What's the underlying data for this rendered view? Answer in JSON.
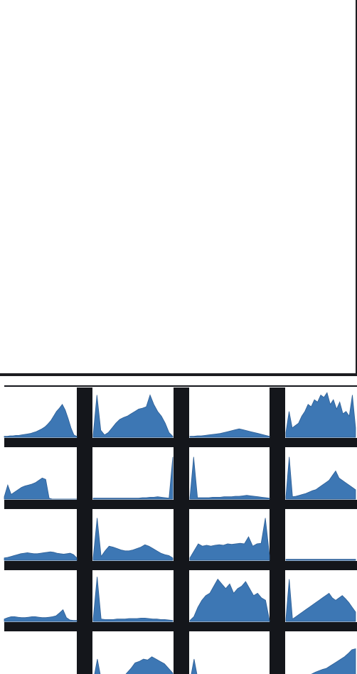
{
  "colors": {
    "fill": "#3d77b4",
    "stroke": "#2e5f96",
    "frame": "#14161b",
    "cell_bg": "#ffffff"
  },
  "chart_data": {
    "type": "area",
    "title": "",
    "xlabel": "",
    "ylabel": "",
    "grid": false,
    "legend": "none",
    "rows": 5,
    "cols": 4,
    "panels": [
      {
        "row": 0,
        "col": 0,
        "values": [
          0.02,
          0.02,
          0.03,
          0.03,
          0.04,
          0.04,
          0.05,
          0.06,
          0.07,
          0.08,
          0.1,
          0.12,
          0.15,
          0.18,
          0.22,
          0.28,
          0.35,
          0.45,
          0.55,
          0.62,
          0.7,
          0.58,
          0.4,
          0.2,
          0.05,
          0.02
        ]
      },
      {
        "row": 0,
        "col": 1,
        "values": [
          0.05,
          0.9,
          0.15,
          0.05,
          0.1,
          0.2,
          0.3,
          0.38,
          0.42,
          0.45,
          0.5,
          0.55,
          0.6,
          0.62,
          0.65,
          0.9,
          0.7,
          0.55,
          0.45,
          0.3,
          0.1,
          0.02
        ]
      },
      {
        "row": 0,
        "col": 2,
        "values": [
          0.02,
          0.02,
          0.03,
          0.03,
          0.04,
          0.05,
          0.06,
          0.07,
          0.08,
          0.1,
          0.12,
          0.14,
          0.16,
          0.18,
          0.16,
          0.14,
          0.12,
          0.1,
          0.08,
          0.06,
          0.04,
          0.02
        ]
      },
      {
        "row": 0,
        "col": 3,
        "values": [
          0.1,
          0.55,
          0.2,
          0.25,
          0.3,
          0.45,
          0.55,
          0.7,
          0.65,
          0.8,
          0.75,
          0.9,
          0.85,
          0.95,
          0.7,
          0.8,
          0.6,
          0.75,
          0.5,
          0.55,
          0.45,
          0.9,
          0.2
        ]
      },
      {
        "row": 1,
        "col": 0,
        "values": [
          0.05,
          0.3,
          0.1,
          0.15,
          0.2,
          0.25,
          0.28,
          0.3,
          0.32,
          0.35,
          0.4,
          0.45,
          0.42,
          0.02,
          0.0,
          0.0,
          0.0,
          0.0,
          0.0,
          0.0,
          0.0,
          0.0
        ]
      },
      {
        "row": 1,
        "col": 1,
        "values": [
          0.02,
          0.02,
          0.02,
          0.02,
          0.02,
          0.02,
          0.02,
          0.02,
          0.02,
          0.02,
          0.02,
          0.02,
          0.02,
          0.03,
          0.03,
          0.04,
          0.04,
          0.05,
          0.04,
          0.03,
          0.02,
          0.9
        ]
      },
      {
        "row": 1,
        "col": 2,
        "values": [
          0.02,
          0.9,
          0.03,
          0.03,
          0.03,
          0.03,
          0.04,
          0.04,
          0.04,
          0.05,
          0.05,
          0.05,
          0.06,
          0.06,
          0.07,
          0.08,
          0.07,
          0.06,
          0.05,
          0.04,
          0.03,
          0.02
        ]
      },
      {
        "row": 1,
        "col": 3,
        "values": [
          0.05,
          0.9,
          0.05,
          0.06,
          0.08,
          0.1,
          0.12,
          0.15,
          0.18,
          0.2,
          0.25,
          0.3,
          0.35,
          0.4,
          0.5,
          0.6,
          0.45,
          0.4,
          0.35,
          0.3,
          0.25,
          0.2
        ]
      },
      {
        "row": 2,
        "col": 0,
        "values": [
          0.05,
          0.06,
          0.08,
          0.1,
          0.12,
          0.14,
          0.15,
          0.16,
          0.15,
          0.14,
          0.14,
          0.15,
          0.16,
          0.17,
          0.18,
          0.17,
          0.15,
          0.14,
          0.13,
          0.14,
          0.15,
          0.12,
          0.05
        ]
      },
      {
        "row": 2,
        "col": 1,
        "values": [
          0.05,
          0.9,
          0.08,
          0.2,
          0.3,
          0.28,
          0.25,
          0.22,
          0.2,
          0.2,
          0.22,
          0.25,
          0.28,
          0.33,
          0.3,
          0.25,
          0.2,
          0.15,
          0.12,
          0.1,
          0.05
        ]
      },
      {
        "row": 2,
        "col": 2,
        "values": [
          0.05,
          0.2,
          0.35,
          0.3,
          0.32,
          0.3,
          0.32,
          0.33,
          0.32,
          0.35,
          0.34,
          0.35,
          0.36,
          0.35,
          0.5,
          0.3,
          0.35,
          0.36,
          0.9,
          0.1
        ]
      },
      {
        "row": 2,
        "col": 3,
        "values": [
          0.02,
          0.02,
          0.02,
          0.02,
          0.02,
          0.02,
          0.02,
          0.02,
          0.02,
          0.02,
          0.02,
          0.02,
          0.02,
          0.02,
          0.02,
          0.02,
          0.02,
          0.02,
          0.02,
          0.02,
          0.02,
          0.02
        ]
      },
      {
        "row": 3,
        "col": 0,
        "values": [
          0.05,
          0.08,
          0.1,
          0.1,
          0.09,
          0.08,
          0.08,
          0.09,
          0.1,
          0.1,
          0.09,
          0.08,
          0.08,
          0.09,
          0.1,
          0.12,
          0.18,
          0.25,
          0.08,
          0.03,
          0.02,
          0.02
        ]
      },
      {
        "row": 3,
        "col": 1,
        "values": [
          0.05,
          0.95,
          0.05,
          0.04,
          0.04,
          0.04,
          0.05,
          0.05,
          0.05,
          0.06,
          0.06,
          0.06,
          0.07,
          0.07,
          0.06,
          0.05,
          0.05,
          0.04,
          0.04,
          0.03,
          0.02
        ]
      },
      {
        "row": 3,
        "col": 2,
        "values": [
          0.02,
          0.1,
          0.3,
          0.45,
          0.55,
          0.6,
          0.75,
          0.9,
          0.8,
          0.7,
          0.8,
          0.6,
          0.7,
          0.75,
          0.85,
          0.7,
          0.55,
          0.6,
          0.5,
          0.45,
          0.02
        ]
      },
      {
        "row": 3,
        "col": 3,
        "values": [
          0.05,
          0.9,
          0.05,
          0.1,
          0.15,
          0.2,
          0.25,
          0.3,
          0.35,
          0.4,
          0.45,
          0.5,
          0.55,
          0.6,
          0.5,
          0.45,
          0.5,
          0.55,
          0.48,
          0.4,
          0.3,
          0.2
        ]
      },
      {
        "row": 4,
        "col": 0,
        "values": [
          0.02,
          0.02,
          0.02,
          0.02,
          0.02,
          0.02,
          0.02,
          0.02,
          0.02,
          0.02,
          0.02,
          0.02,
          0.02,
          0.02,
          0.02,
          0.02,
          0.02,
          0.02,
          0.02,
          0.02
        ]
      },
      {
        "row": 4,
        "col": 1,
        "values": [
          0.02,
          0.5,
          0.03,
          0.03,
          0.03,
          0.04,
          0.06,
          0.1,
          0.2,
          0.3,
          0.42,
          0.45,
          0.5,
          0.48,
          0.55,
          0.5,
          0.45,
          0.4,
          0.3,
          0.2
        ]
      },
      {
        "row": 4,
        "col": 2,
        "values": [
          0.02,
          0.5,
          0.03,
          0.03,
          0.04,
          0.04,
          0.05,
          0.05,
          0.06,
          0.06,
          0.07,
          0.07,
          0.08,
          0.08,
          0.1,
          0.12,
          0.1,
          0.08,
          0.06,
          0.04
        ]
      },
      {
        "row": 4,
        "col": 3,
        "values": [
          0.02,
          0.04,
          0.06,
          0.08,
          0.1,
          0.12,
          0.15,
          0.18,
          0.22,
          0.25,
          0.28,
          0.3,
          0.35,
          0.4,
          0.45,
          0.5,
          0.55,
          0.62,
          0.7,
          0.72
        ]
      }
    ]
  }
}
